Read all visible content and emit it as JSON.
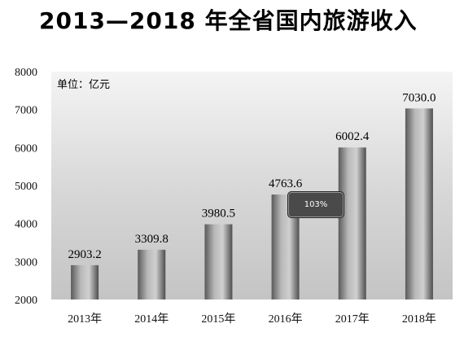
{
  "chart_data": {
    "type": "bar",
    "title": "2013—2018 年全省国内旅游收入",
    "unit_label": "单位：亿元",
    "categories": [
      "2013年",
      "2014年",
      "2015年",
      "2016年",
      "2017年",
      "2018年"
    ],
    "values": [
      2903.2,
      3309.8,
      3980.5,
      4763.6,
      6002.4,
      7030.0
    ],
    "value_labels": [
      "2903.2",
      "3309.8",
      "3980.5",
      "4763.6",
      "6002.4",
      "7030.0"
    ],
    "yticks": [
      "2000",
      "3000",
      "4000",
      "5000",
      "6000",
      "7000",
      "8000"
    ],
    "ylim": [
      2000,
      8000
    ],
    "grid": false,
    "bar_color": "#8a8a8a"
  },
  "overlay": {
    "zoom_label": "103%"
  }
}
